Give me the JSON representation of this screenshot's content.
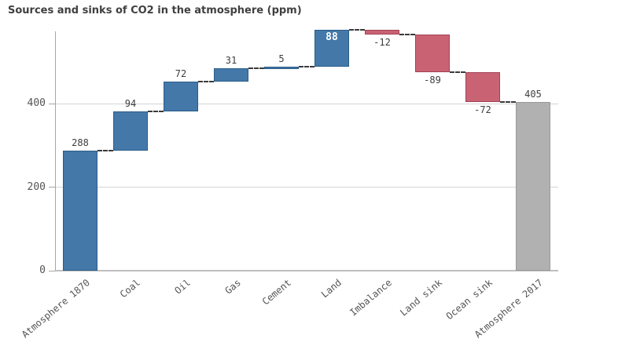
{
  "chart_data": {
    "type": "waterfall-bar",
    "title": "Sources and sinks of CO2 in the atmosphere (ppm)",
    "categories": [
      "Atmosphere 1870",
      "Coal",
      "Oil",
      "Gas",
      "Cement",
      "Land",
      "Imbalance",
      "Land sink",
      "Ocean sink",
      "Atmosphere 2017"
    ],
    "values": [
      288,
      94,
      72,
      31,
      5,
      88,
      -12,
      -89,
      -72,
      405
    ],
    "value_labels": [
      "288",
      "94",
      "72",
      "31",
      "5",
      "88",
      "-12",
      "-89",
      "-72",
      "405"
    ],
    "bar_kinds": [
      "start",
      "inc",
      "inc",
      "inc",
      "inc",
      "inc",
      "dec",
      "dec",
      "dec",
      "total"
    ],
    "label_placements": [
      "above",
      "above",
      "above",
      "above",
      "above",
      "inside",
      "below",
      "below",
      "below",
      "above"
    ],
    "running_totals": [
      288,
      382,
      454,
      485,
      490,
      578,
      566,
      477,
      405,
      405
    ],
    "yticks": [
      0,
      200,
      400
    ],
    "ylim": [
      0,
      574
    ],
    "grid": true,
    "legend": false,
    "xlabel": "",
    "ylabel": "",
    "colors": {
      "increase": "#4478a9",
      "increase_border": "#2a5d88",
      "decrease": "#c96374",
      "decrease_border": "#a24257",
      "total": "#b1b1b1",
      "total_border": "#999999",
      "connector": "#3a3a3a",
      "axis": "#a6a6a6",
      "grid": "#d4d4d4",
      "baseline": "#bfbfbf",
      "value_label": "#3d3d3d",
      "inside_label": "#ffffff",
      "tick_label": "#555555",
      "title": "#404040"
    }
  }
}
